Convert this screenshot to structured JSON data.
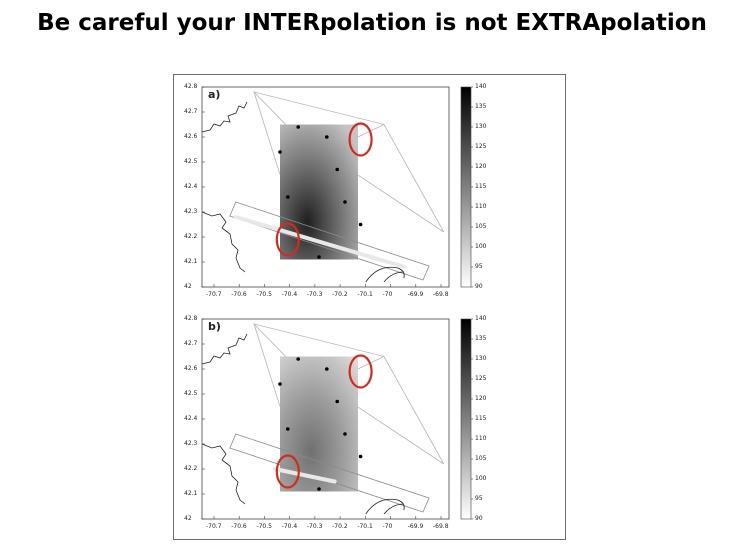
{
  "slide": {
    "title": "Be careful your INTERpolation is not EXTRApolation"
  },
  "figure": {
    "panels": [
      {
        "label": "a)",
        "y_ticks": [
          "42.8",
          "42.7",
          "42.6",
          "42.5",
          "42.4",
          "42.3",
          "42.2",
          "42.1",
          "42"
        ],
        "x_ticks": [
          "-70.7",
          "-70.6",
          "-70.5",
          "-70.4",
          "-70.3",
          "-70.2",
          "-70.1",
          "-70",
          "-69.9",
          "-69.8"
        ],
        "colorbar_ticks": [
          "140",
          "135",
          "130",
          "125",
          "120",
          "115",
          "110",
          "105",
          "100",
          "95",
          "90"
        ],
        "colorbar_range": [
          90,
          140
        ],
        "stations": [
          {
            "lon": -70.38,
            "lat": 42.64
          },
          {
            "lon": -70.27,
            "lat": 42.6
          },
          {
            "lon": -70.45,
            "lat": 42.54
          },
          {
            "lon": -70.23,
            "lat": 42.47
          },
          {
            "lon": -70.42,
            "lat": 42.36
          },
          {
            "lon": -70.2,
            "lat": 42.34
          },
          {
            "lon": -70.14,
            "lat": 42.25
          },
          {
            "lon": -70.3,
            "lat": 42.12
          }
        ],
        "highlight_circles": [
          {
            "lon": -70.14,
            "lat": 42.59
          },
          {
            "lon": -70.42,
            "lat": 42.19
          }
        ]
      },
      {
        "label": "b)",
        "y_ticks": [
          "42.8",
          "42.7",
          "42.6",
          "42.5",
          "42.4",
          "42.3",
          "42.2",
          "42.1",
          "42"
        ],
        "x_ticks": [
          "-70.7",
          "-70.6",
          "-70.5",
          "-70.4",
          "-70.3",
          "-70.2",
          "-70.1",
          "-70",
          "-69.9",
          "-69.8"
        ],
        "colorbar_ticks": [
          "140",
          "135",
          "130",
          "125",
          "120",
          "115",
          "110",
          "105",
          "100",
          "95",
          "90"
        ],
        "colorbar_range": [
          90,
          140
        ],
        "stations": [
          {
            "lon": -70.38,
            "lat": 42.64
          },
          {
            "lon": -70.27,
            "lat": 42.6
          },
          {
            "lon": -70.45,
            "lat": 42.54
          },
          {
            "lon": -70.23,
            "lat": 42.47
          },
          {
            "lon": -70.42,
            "lat": 42.36
          },
          {
            "lon": -70.2,
            "lat": 42.34
          },
          {
            "lon": -70.14,
            "lat": 42.25
          },
          {
            "lon": -70.3,
            "lat": 42.12
          }
        ],
        "highlight_circles": [
          {
            "lon": -70.14,
            "lat": 42.59
          },
          {
            "lon": -70.42,
            "lat": 42.19
          }
        ]
      }
    ],
    "colors": {
      "highlight_circle": "#d6291c",
      "station_dot": "#000000",
      "outline": "#8a8a8a",
      "coast": "#222222"
    }
  }
}
